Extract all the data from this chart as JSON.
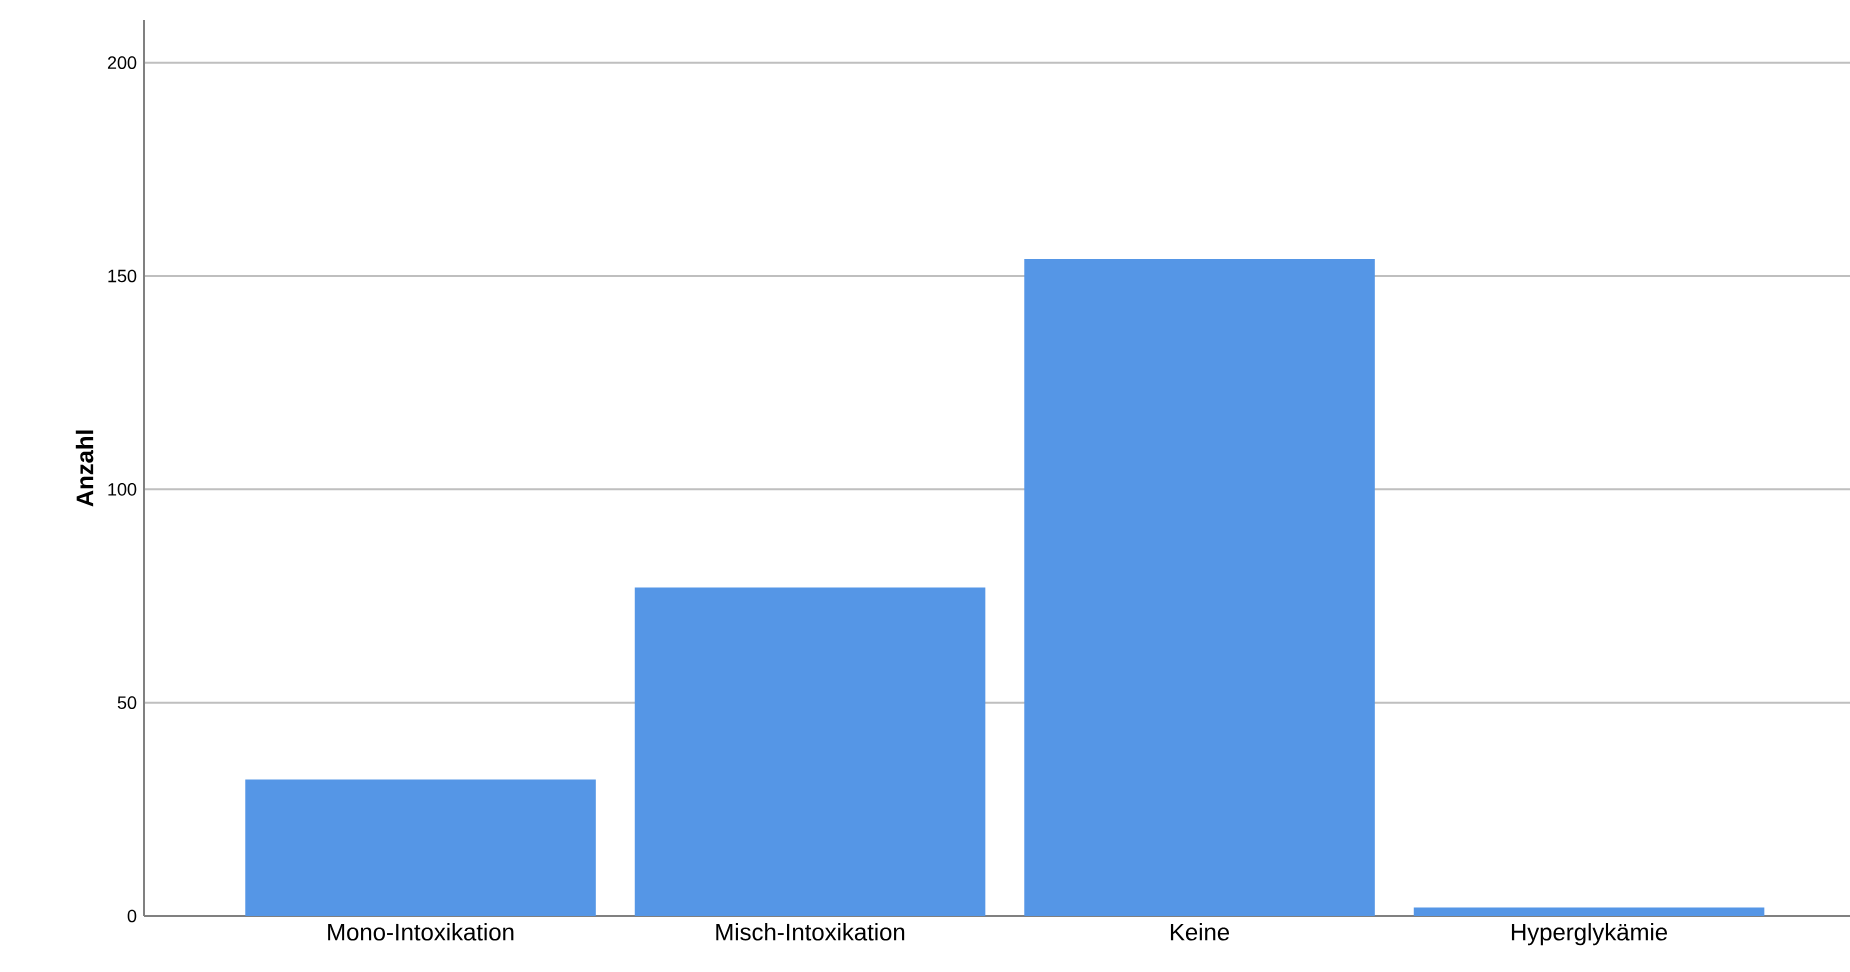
{
  "chart_data": {
    "type": "bar",
    "ylabel": "Anzahl",
    "categories": [
      "Mono-Intoxikation",
      "Misch-Intoxikation",
      "Keine",
      "Hyperglykämie"
    ],
    "values": [
      32,
      77,
      154,
      2
    ],
    "color": "#5596e6",
    "ylim": [
      0,
      210
    ],
    "yticks": [
      0,
      50,
      100,
      150,
      200
    ],
    "grid": "y"
  }
}
